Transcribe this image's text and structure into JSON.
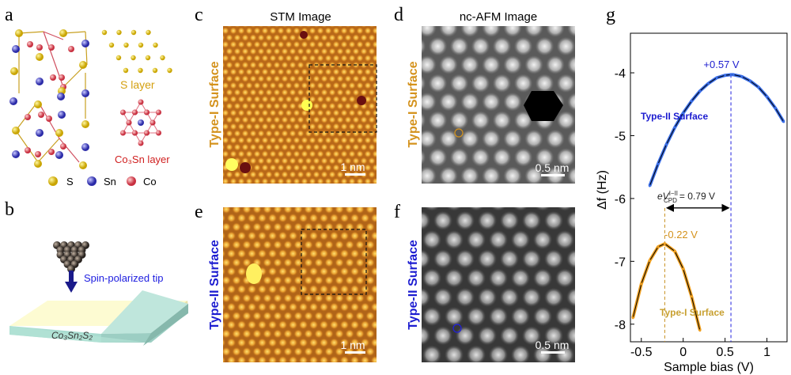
{
  "panel_labels": {
    "a": "a",
    "b": "b",
    "c": "c",
    "d": "d",
    "e": "e",
    "f": "f",
    "g": "g"
  },
  "panel_a": {
    "s_layer_label": "S layer",
    "co3sn_layer_label": "Co₃Sn layer",
    "legend": [
      {
        "element": "S",
        "color": "#e6c020"
      },
      {
        "element": "Sn",
        "color": "#4a4ad0"
      },
      {
        "element": "Co",
        "color": "#e05a64"
      }
    ]
  },
  "panel_b": {
    "tip_label": "Spin-polarized tip",
    "crystal_label": "Co₃Sn₂S₂"
  },
  "column_titles": {
    "stm": "STM Image",
    "afm": "nc-AFM Image"
  },
  "row_labels": {
    "type1": "Type-I Surface",
    "type2": "Type-II Surface"
  },
  "colors": {
    "type1": "#d4921c",
    "type2": "#1c1cd0",
    "stm": "#c97a20"
  },
  "scale_bars": {
    "c": "1 nm",
    "d": "0.5 nm",
    "e": "1 nm",
    "f": "0.5 nm"
  },
  "chart_data": {
    "type": "scatter",
    "xlabel": "Sample bias (V)",
    "ylabel": "Δf (Hz)",
    "xlim": [
      -0.63,
      1.24
    ],
    "ylim": [
      -8.28,
      -3.37
    ],
    "xticks": [
      -0.5,
      0,
      0.5,
      1
    ],
    "xtick_labels": [
      "-0.5",
      "0",
      "0.5",
      "1"
    ],
    "yticks": [
      -4,
      -5,
      -6,
      -7,
      -8
    ],
    "ytick_labels": [
      "-4",
      "-5",
      "-6",
      "-7",
      "-8"
    ],
    "grid": false,
    "series": [
      {
        "name": "Type-II Surface",
        "color": "#3a6ee8",
        "x": [
          -0.4,
          -0.3,
          -0.2,
          -0.1,
          0,
          0.1,
          0.2,
          0.3,
          0.4,
          0.5,
          0.57,
          0.6,
          0.7,
          0.8,
          0.9,
          1.0,
          1.1,
          1.2
        ],
        "y": [
          -5.8,
          -5.45,
          -5.14,
          -4.87,
          -4.64,
          -4.45,
          -4.29,
          -4.17,
          -4.08,
          -4.04,
          -4.03,
          -4.03,
          -4.06,
          -4.13,
          -4.23,
          -4.38,
          -4.56,
          -4.78
        ],
        "peak_x": 0.57,
        "peak_label": "+0.57 V"
      },
      {
        "name": "Type-I Surface",
        "color": "#f0a020",
        "x": [
          -0.6,
          -0.5,
          -0.4,
          -0.3,
          -0.22,
          -0.1,
          0,
          0.1,
          0.2
        ],
        "y": [
          -7.9,
          -7.36,
          -6.99,
          -6.77,
          -6.72,
          -6.84,
          -7.12,
          -7.56,
          -8.1
        ],
        "peak_x": -0.22,
        "peak_label": "-0.22 V"
      }
    ],
    "annotation": {
      "prefix": "eV",
      "sup": "I−II",
      "sub": "CPD",
      "value": "= 0.79 V",
      "y": -6.15
    }
  }
}
